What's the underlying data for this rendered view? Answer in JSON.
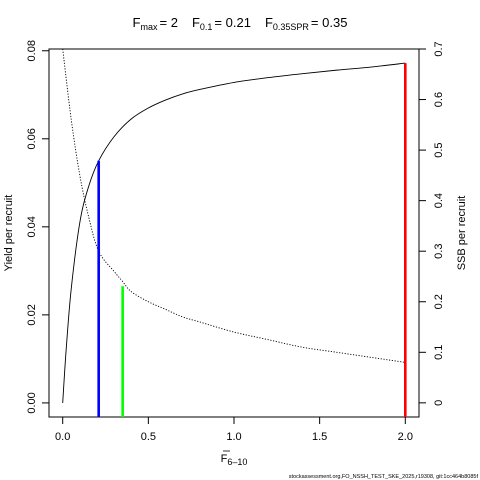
{
  "chart_data": {
    "type": "line",
    "title": {
      "fmax_base": "F",
      "fmax_sub": "max",
      "fmax_value": "= 2",
      "f01_base": "F",
      "f01_sub": "0.1",
      "f01_value": "= 0.21",
      "fspr_base": "F",
      "fspr_sub": "0.35SPR",
      "fspr_value": "= 0.35"
    },
    "xlabel_main": "F",
    "xlabel_sub": "6–10",
    "ylabel_left": "Yield per recruit",
    "ylabel_right": "SSB per recruit",
    "xlim": [
      -0.08,
      2.08
    ],
    "ylim_left": [
      -0.0032,
      0.0804
    ],
    "ylim_right": [
      -0.028,
      0.7
    ],
    "x_ticks": [
      0,
      0.5,
      1,
      1.5,
      2
    ],
    "x_tick_labels": [
      "0.0",
      "0.5",
      "1.0",
      "1.5",
      "2.0"
    ],
    "y_left_ticks": [
      0,
      0.02,
      0.04,
      0.06,
      0.08
    ],
    "y_left_tick_labels": [
      "0.00",
      "0.02",
      "0.04",
      "0.06",
      "0.08"
    ],
    "y_right_ticks": [
      0,
      0.1,
      0.2,
      0.3,
      0.4,
      0.5,
      0.6,
      0.7
    ],
    "y_right_tick_labels": [
      "0",
      "0.1",
      "0.2",
      "0.3",
      "0.4",
      "0.5",
      "0.6",
      "0.7"
    ],
    "grid": false,
    "legend": "none",
    "series": [
      {
        "axis": "left",
        "style": "solid",
        "color": "#000000",
        "x": [
          0,
          0.02,
          0.05,
          0.1,
          0.15,
          0.21,
          0.3,
          0.4,
          0.5,
          0.6,
          0.7,
          0.8,
          1.0,
          1.2,
          1.4,
          1.6,
          1.8,
          2.0
        ],
        "y": [
          0,
          0.012,
          0.026,
          0.041,
          0.049,
          0.055,
          0.0605,
          0.0645,
          0.067,
          0.0688,
          0.0702,
          0.0712,
          0.0728,
          0.0739,
          0.0748,
          0.0756,
          0.0763,
          0.0772
        ]
      },
      {
        "axis": "right",
        "style": "dotted",
        "color": "#000000",
        "x": [
          0,
          0.05,
          0.1,
          0.15,
          0.21,
          0.3,
          0.35,
          0.4,
          0.5,
          0.6,
          0.7,
          0.8,
          1.0,
          1.2,
          1.4,
          1.6,
          1.8,
          2.0
        ],
        "y": [
          0.7,
          0.56,
          0.45,
          0.37,
          0.3,
          0.26,
          0.24,
          0.22,
          0.2,
          0.185,
          0.17,
          0.16,
          0.14,
          0.125,
          0.11,
          0.1,
          0.09,
          0.08
        ]
      }
    ],
    "reference_lines": [
      {
        "name": "F0.1",
        "x": 0.21,
        "axis": "left",
        "y_top": 0.055,
        "color": "#0000ff"
      },
      {
        "name": "F0.35SPR",
        "x": 0.35,
        "axis": "left",
        "y_top": 0.0265,
        "color": "#00ff00"
      },
      {
        "name": "Fmax",
        "x": 2.0,
        "axis": "left",
        "y_top": 0.0772,
        "color": "#ff0000"
      }
    ],
    "footer": "stockassessment.org,FO_NSSH_TEST_SKE_2025,r19308, git:1cc464b8085f"
  }
}
